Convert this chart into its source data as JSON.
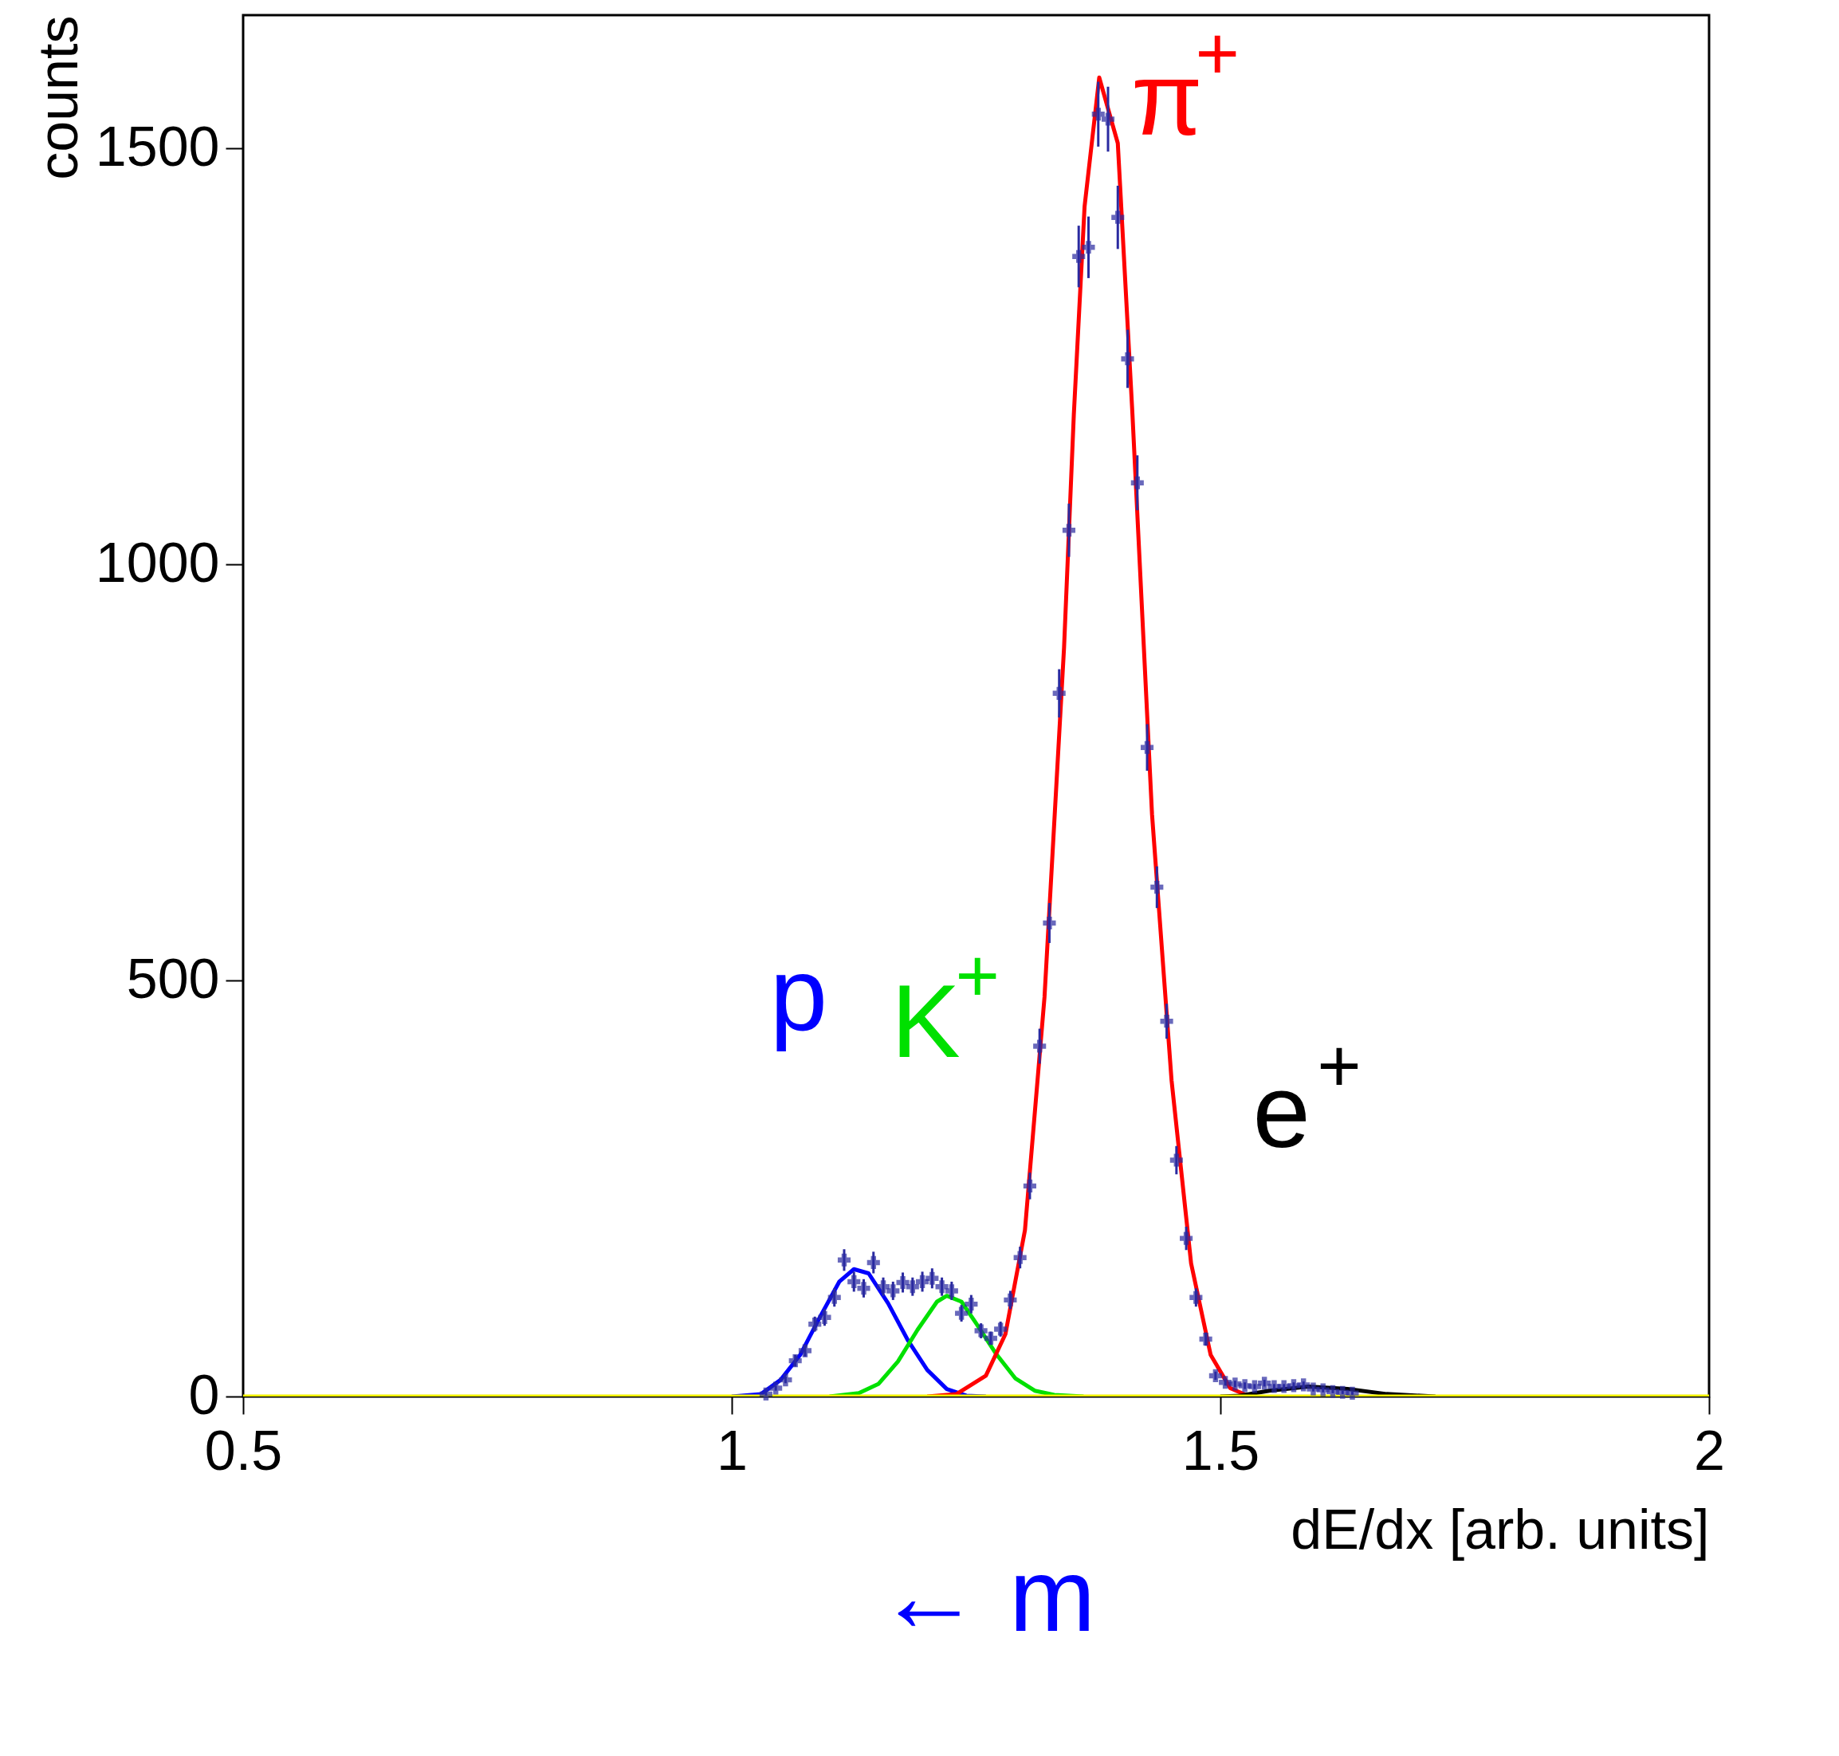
{
  "chart_data": {
    "type": "scatter",
    "xlabel": "dE/dx [arb. units]",
    "ylabel": "counts",
    "xlim": [
      0.5,
      2
    ],
    "ylim": [
      0,
      1660
    ],
    "xticks": [
      0.5,
      1,
      1.5,
      2
    ],
    "yticks": [
      0,
      500,
      1000,
      1500
    ],
    "grid": false,
    "series": [
      {
        "marker": "cross",
        "color": "#2a2aa0",
        "x": [
          1.035,
          1.045,
          1.055,
          1.065,
          1.075,
          1.085,
          1.095,
          1.105,
          1.115,
          1.125,
          1.135,
          1.145,
          1.155,
          1.165,
          1.175,
          1.185,
          1.195,
          1.205,
          1.215,
          1.225,
          1.235,
          1.245,
          1.255,
          1.265,
          1.275,
          1.285,
          1.295,
          1.305,
          1.315,
          1.325,
          1.335,
          1.345,
          1.355,
          1.365,
          1.375,
          1.385,
          1.395,
          1.405,
          1.415,
          1.425,
          1.435,
          1.445,
          1.455,
          1.465,
          1.475,
          1.485,
          1.495,
          1.505,
          1.515,
          1.525,
          1.535,
          1.545,
          1.555,
          1.565,
          1.575,
          1.585,
          1.595,
          1.605,
          1.615,
          1.625,
          1.635
        ],
        "values": [
          3,
          10,
          20,
          43,
          55,
          87,
          95,
          119,
          164,
          138,
          130,
          161,
          132,
          127,
          137,
          132,
          138,
          142,
          132,
          127,
          100,
          111,
          79,
          70,
          81,
          116,
          167,
          253,
          421,
          569,
          845,
          1041,
          1370,
          1381,
          1541,
          1535,
          1417,
          1247,
          1098,
          780,
          612,
          451,
          284,
          190,
          119,
          69,
          25,
          17,
          15,
          13,
          12,
          16,
          12,
          12,
          13,
          14,
          9,
          8,
          6,
          5,
          4
        ],
        "errors": [
          2,
          3,
          4,
          7,
          7,
          9,
          10,
          11,
          13,
          12,
          11,
          13,
          11,
          11,
          12,
          11,
          12,
          12,
          11,
          11,
          10,
          11,
          9,
          8,
          9,
          11,
          13,
          16,
          21,
          24,
          29,
          32,
          37,
          37,
          39,
          39,
          38,
          35,
          33,
          28,
          25,
          21,
          17,
          14,
          11,
          8,
          5,
          4,
          4,
          4,
          3,
          4,
          3,
          3,
          4,
          4,
          3,
          3,
          2,
          2,
          2
        ]
      },
      {
        "type": "line",
        "name": "p",
        "marker": "none",
        "color": "#0000ff",
        "x": [
          1.0,
          1.03,
          1.05,
          1.07,
          1.09,
          1.11,
          1.125,
          1.14,
          1.16,
          1.18,
          1.2,
          1.22,
          1.24,
          1.26
        ],
        "values": [
          0,
          3,
          20,
          50,
          95,
          138,
          153,
          148,
          112,
          68,
          32,
          9,
          1,
          0
        ]
      },
      {
        "type": "line",
        "name": "K$^{+}$",
        "marker": "none",
        "color": "#00e000",
        "x": [
          1.1,
          1.13,
          1.15,
          1.17,
          1.19,
          1.21,
          1.22,
          1.235,
          1.25,
          1.27,
          1.29,
          1.31,
          1.33,
          1.36
        ],
        "values": [
          0,
          4,
          15,
          42,
          80,
          114,
          121,
          114,
          88,
          52,
          22,
          7,
          2,
          0
        ]
      },
      {
        "type": "line",
        "name": "π$^{+}$",
        "marker": "none",
        "color": "#ff0000",
        "x": [
          1.2,
          1.23,
          1.26,
          1.28,
          1.3,
          1.32,
          1.34,
          1.35,
          1.361,
          1.376,
          1.395,
          1.41,
          1.43,
          1.45,
          1.47,
          1.49,
          1.51,
          1.53
        ],
        "values": [
          0,
          3,
          25,
          75,
          200,
          480,
          900,
          1180,
          1430,
          1585,
          1506,
          1180,
          700,
          380,
          160,
          50,
          10,
          0
        ]
      },
      {
        "type": "line",
        "name": "e$^{+}$",
        "marker": "none",
        "color": "#000000",
        "x": [
          1.5,
          1.52,
          1.55,
          1.59,
          1.63,
          1.67,
          1.72
        ],
        "values": [
          0,
          1,
          7,
          12,
          9,
          3,
          0
        ]
      },
      {
        "type": "line",
        "marker": "none",
        "color": "#f0f000",
        "x": [
          0.5,
          2
        ],
        "values": [
          0,
          0
        ]
      }
    ],
    "annotations": [
      "← m"
    ]
  }
}
